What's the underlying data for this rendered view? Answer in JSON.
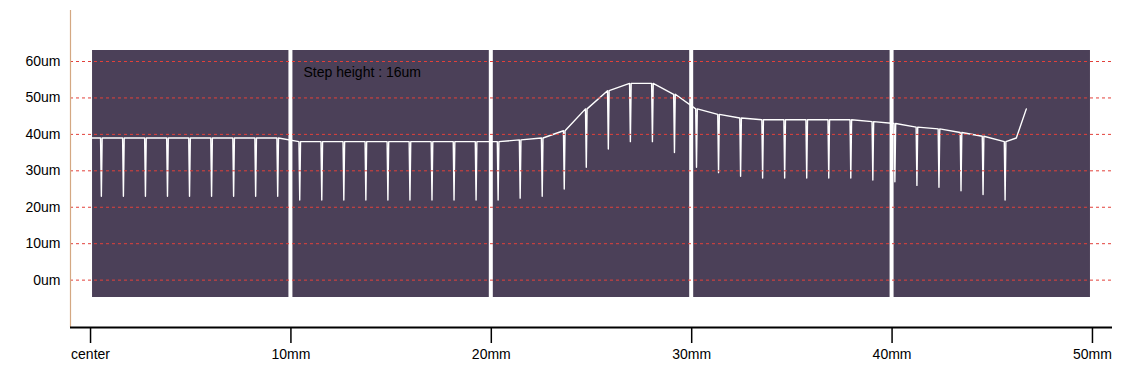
{
  "chart_data": {
    "type": "line",
    "annotations": [
      {
        "text": "Step height : 16um"
      }
    ],
    "x": [
      0,
      0.5,
      0.54,
      0.58,
      1.6,
      1.64,
      1.68,
      2.7,
      2.74,
      2.78,
      3.8,
      3.84,
      3.88,
      4.9,
      4.94,
      4.98,
      6.0,
      6.04,
      6.08,
      7.1,
      7.14,
      7.18,
      8.2,
      8.24,
      8.28,
      9.3,
      9.34,
      9.38,
      10.4,
      10.44,
      10.48,
      11.5,
      11.54,
      11.58,
      12.6,
      12.64,
      12.68,
      13.7,
      13.74,
      13.78,
      14.8,
      14.84,
      14.88,
      15.9,
      15.94,
      15.98,
      17.0,
      17.04,
      17.08,
      18.1,
      18.14,
      18.18,
      19.2,
      19.24,
      19.28,
      20.3,
      20.34,
      20.38,
      21.4,
      21.44,
      21.48,
      22.5,
      22.54,
      22.58,
      23.6,
      23.64,
      23.68,
      24.7,
      24.74,
      24.78,
      25.8,
      25.84,
      25.88,
      26.9,
      26.94,
      26.98,
      28.0,
      28.04,
      28.08,
      29.1,
      29.14,
      29.18,
      30.2,
      30.24,
      30.28,
      31.3,
      31.34,
      31.38,
      32.4,
      32.44,
      32.48,
      33.5,
      33.54,
      33.58,
      34.6,
      34.64,
      34.68,
      35.7,
      35.74,
      35.78,
      36.8,
      36.84,
      36.88,
      37.9,
      37.94,
      37.98,
      39.0,
      39.04,
      39.08,
      40.1,
      40.14,
      40.18,
      41.2,
      41.24,
      41.28,
      42.3,
      42.34,
      42.38,
      43.4,
      43.44,
      43.48,
      44.5,
      44.54,
      44.58,
      45.6,
      45.64,
      45.68,
      46.2,
      46.7
    ],
    "values": [
      39,
      39,
      23,
      39,
      39,
      23,
      39,
      39,
      23,
      39,
      39,
      23,
      39,
      39,
      23,
      39,
      39,
      23,
      39,
      39,
      23,
      39,
      39,
      23,
      39,
      39,
      23,
      39,
      38,
      22,
      38,
      38,
      22,
      38,
      38,
      22,
      38,
      38,
      22,
      38,
      38,
      22,
      38,
      38,
      22,
      38,
      38,
      22,
      38,
      38,
      22,
      38,
      38,
      22,
      38,
      38,
      22,
      38,
      38.5,
      22.5,
      38.5,
      39,
      23,
      39,
      41,
      25,
      41,
      47,
      31,
      47,
      52,
      36,
      52,
      54,
      38,
      54,
      54,
      38,
      54,
      51,
      35,
      51,
      47,
      31,
      47,
      45.5,
      29.5,
      45.5,
      44.5,
      28.5,
      44.5,
      44,
      28,
      44,
      44,
      28,
      44,
      44,
      28,
      44,
      44,
      28,
      44,
      44,
      28,
      44,
      43.5,
      27.5,
      43.5,
      43,
      27,
      43,
      42,
      26,
      42,
      41.5,
      25.5,
      41.5,
      40.5,
      24.5,
      40.5,
      39.5,
      23.5,
      39.5,
      38,
      22,
      38,
      39,
      47
    ],
    "color": "#ffffff",
    "line_style": "solid",
    "xlim": [
      -1,
      51
    ],
    "xticks": [
      {
        "value": 0,
        "label": "center"
      },
      {
        "value": 10,
        "label": "10mm"
      },
      {
        "value": 20,
        "label": "20mm"
      },
      {
        "value": 30,
        "label": "30mm"
      },
      {
        "value": 40,
        "label": "40mm"
      },
      {
        "value": 50,
        "label": "50mm"
      }
    ],
    "ylim": [
      -13,
      74
    ],
    "yticks": [
      {
        "value": 0,
        "label": "0um"
      },
      {
        "value": 10,
        "label": "10um"
      },
      {
        "value": 20,
        "label": "20um"
      },
      {
        "value": 30,
        "label": "30um"
      },
      {
        "value": 40,
        "label": "40um"
      },
      {
        "value": 50,
        "label": "50um"
      },
      {
        "value": 60,
        "label": "60um"
      }
    ],
    "grid": true
  }
}
